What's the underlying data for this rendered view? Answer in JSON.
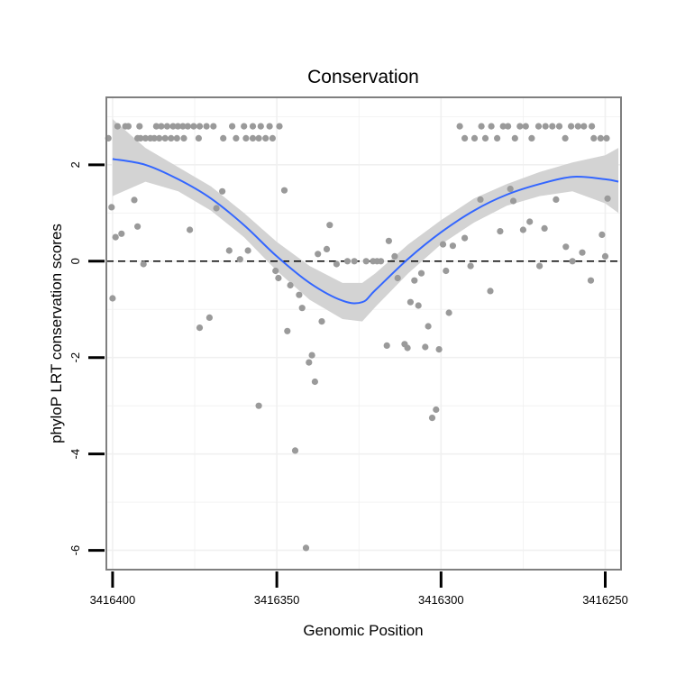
{
  "chart_data": {
    "type": "scatter",
    "title": "Conservation",
    "xlabel": "Genomic Position",
    "ylabel": "phyloP LRT conservation scores",
    "x_reversed": true,
    "xlim": [
      3416401.9,
      3416245.2
    ],
    "ylim": [
      -6.4,
      3.4
    ],
    "x_ticks": [
      3416400,
      3416350,
      3416300,
      3416250
    ],
    "x_tick_labels": [
      "3416400",
      "3416350",
      "3416300",
      "3416250"
    ],
    "y_ticks": [
      -6,
      -4,
      -2,
      0,
      2
    ],
    "y_tick_labels": [
      "-6",
      "-4",
      "-2",
      "0",
      "2"
    ],
    "grid": true,
    "reference_line": {
      "y": 0,
      "style": "dashed",
      "color": "#000000"
    },
    "colors": {
      "points": "#9a9a9a",
      "smooth_line": "#3366ff",
      "ribbon": "#d3d3d3",
      "panel_border": "#7f7f7f",
      "grid": "#f0f0f0"
    },
    "series": [
      {
        "kind": "points",
        "points": [
          [
            3416401.3,
            2.55
          ],
          [
            3416400.3,
            1.12
          ],
          [
            3416400,
            -0.77
          ],
          [
            3416399.1,
            0.5
          ],
          [
            3416398.5,
            2.8
          ],
          [
            3416397.3,
            0.57
          ],
          [
            3416396.1,
            2.8
          ],
          [
            3416395.2,
            2.8
          ],
          [
            3416393.4,
            1.27
          ],
          [
            3416392.4,
            0.72
          ],
          [
            3416390.6,
            -0.06
          ],
          [
            3416392.4,
            2.55
          ],
          [
            3416391.5,
            2.55
          ],
          [
            3416390,
            2.55
          ],
          [
            3416388.5,
            2.55
          ],
          [
            3416391.8,
            2.8
          ],
          [
            3416387.3,
            2.55
          ],
          [
            3416385.8,
            2.55
          ],
          [
            3416384,
            2.55
          ],
          [
            3416382.2,
            2.55
          ],
          [
            3416380.4,
            2.55
          ],
          [
            3416378.3,
            2.55
          ],
          [
            3416386.7,
            2.8
          ],
          [
            3416385.2,
            2.8
          ],
          [
            3416383.4,
            2.8
          ],
          [
            3416381.6,
            2.8
          ],
          [
            3416380.1,
            2.8
          ],
          [
            3416378.6,
            2.8
          ],
          [
            3416377.1,
            2.8
          ],
          [
            3416375.3,
            2.8
          ],
          [
            3416373.5,
            2.8
          ],
          [
            3416371.4,
            2.8
          ],
          [
            3416369.3,
            2.8
          ],
          [
            3416373.8,
            2.55
          ],
          [
            3416376.5,
            0.65
          ],
          [
            3416373.5,
            -1.38
          ],
          [
            3416370.5,
            -1.17
          ],
          [
            3416368.4,
            1.1
          ],
          [
            3416366.6,
            1.45
          ],
          [
            3416364.5,
            0.22
          ],
          [
            3416361.2,
            0.04
          ],
          [
            3416358.8,
            0.22
          ],
          [
            3416366.3,
            2.55
          ],
          [
            3416362.4,
            2.55
          ],
          [
            3416359.4,
            2.55
          ],
          [
            3416357.3,
            2.55
          ],
          [
            3416355.5,
            2.55
          ],
          [
            3416353.4,
            2.55
          ],
          [
            3416351.3,
            2.55
          ],
          [
            3416363.6,
            2.8
          ],
          [
            3416360,
            2.8
          ],
          [
            3416357.3,
            2.8
          ],
          [
            3416354.9,
            2.8
          ],
          [
            3416352.2,
            2.8
          ],
          [
            3416349.2,
            2.8
          ],
          [
            3416355.5,
            -3
          ],
          [
            3416350.4,
            -0.2
          ],
          [
            3416349.5,
            -0.35
          ],
          [
            3416347.7,
            1.47
          ],
          [
            3416346.8,
            -1.45
          ],
          [
            3416345.9,
            -0.5
          ],
          [
            3416344.4,
            -3.93
          ],
          [
            3416343.2,
            -0.7
          ],
          [
            3416342.3,
            -0.97
          ],
          [
            3416341.1,
            -5.95
          ],
          [
            3416340.2,
            -2.1
          ],
          [
            3416339.3,
            -1.95
          ],
          [
            3416338.4,
            -2.5
          ],
          [
            3416337.5,
            0.15
          ],
          [
            3416336.3,
            -1.25
          ],
          [
            3416334.8,
            0.25
          ],
          [
            3416333.9,
            0.75
          ],
          [
            3416331.8,
            -0.06
          ],
          [
            3416328.5,
            0.0
          ],
          [
            3416326.4,
            0.0
          ],
          [
            3416322.8,
            0.0
          ],
          [
            3416320.7,
            0.0
          ],
          [
            3416319.5,
            0.0
          ],
          [
            3416318.3,
            0.0
          ],
          [
            3416316.5,
            -1.75
          ],
          [
            3416315.9,
            0.42
          ],
          [
            3416314.1,
            0.1
          ],
          [
            3416313.2,
            -0.35
          ],
          [
            3416311.1,
            -1.72
          ],
          [
            3416310.2,
            -1.8
          ],
          [
            3416309.3,
            -0.85
          ],
          [
            3416308.1,
            -0.4
          ],
          [
            3416306.9,
            -0.92
          ],
          [
            3416306,
            -0.25
          ],
          [
            3416304.8,
            -1.78
          ],
          [
            3416303.9,
            -1.35
          ],
          [
            3416302.7,
            -3.25
          ],
          [
            3416301.5,
            -3.08
          ],
          [
            3416300.6,
            -1.83
          ],
          [
            3416299.4,
            0.35
          ],
          [
            3416298.5,
            -0.2
          ],
          [
            3416297.6,
            -1.07
          ],
          [
            3416296.4,
            0.32
          ],
          [
            3416294.3,
            2.8
          ],
          [
            3416292.8,
            2.55
          ],
          [
            3416289.8,
            2.55
          ],
          [
            3416287.7,
            2.8
          ],
          [
            3416286.5,
            2.55
          ],
          [
            3416284.7,
            2.8
          ],
          [
            3416282.9,
            2.55
          ],
          [
            3416281.1,
            2.8
          ],
          [
            3416279.6,
            2.8
          ],
          [
            3416277.5,
            2.55
          ],
          [
            3416276,
            2.8
          ],
          [
            3416274.2,
            2.8
          ],
          [
            3416272.4,
            2.55
          ],
          [
            3416270.3,
            2.8
          ],
          [
            3416268.2,
            2.8
          ],
          [
            3416266.1,
            2.8
          ],
          [
            3416264,
            2.8
          ],
          [
            3416262.2,
            2.55
          ],
          [
            3416260.4,
            2.8
          ],
          [
            3416258.3,
            2.8
          ],
          [
            3416256.5,
            2.8
          ],
          [
            3416254.1,
            2.8
          ],
          [
            3416251.4,
            2.55
          ],
          [
            3416249.6,
            2.55
          ],
          [
            3416292.8,
            0.48
          ],
          [
            3416291,
            -0.1
          ],
          [
            3416288,
            1.28
          ],
          [
            3416285,
            -0.62
          ],
          [
            3416282,
            0.62
          ],
          [
            3416278.9,
            1.5
          ],
          [
            3416278,
            1.25
          ],
          [
            3416275,
            0.65
          ],
          [
            3416273,
            0.82
          ],
          [
            3416270,
            -0.1
          ],
          [
            3416268.5,
            0.68
          ],
          [
            3416265,
            1.28
          ],
          [
            3416262,
            0.3
          ],
          [
            3416260,
            0.0
          ],
          [
            3416257,
            0.18
          ],
          [
            3416254.4,
            -0.4
          ],
          [
            3416253.5,
            2.55
          ],
          [
            3416251,
            0.55
          ],
          [
            3416250,
            0.1
          ],
          [
            3416249.3,
            1.3
          ]
        ]
      },
      {
        "kind": "smooth",
        "points": [
          [
            3416400,
            2.12
          ],
          [
            3416390,
            2.0
          ],
          [
            3416380,
            1.7
          ],
          [
            3416370,
            1.3
          ],
          [
            3416360,
            0.75
          ],
          [
            3416350,
            0.1
          ],
          [
            3416340,
            -0.45
          ],
          [
            3416330,
            -0.82
          ],
          [
            3416324,
            -0.85
          ],
          [
            3416320,
            -0.6
          ],
          [
            3416310,
            0.05
          ],
          [
            3416300,
            0.6
          ],
          [
            3416290,
            1.05
          ],
          [
            3416280,
            1.38
          ],
          [
            3416270,
            1.6
          ],
          [
            3416260,
            1.75
          ],
          [
            3416250,
            1.7
          ],
          [
            3416246,
            1.65
          ]
        ]
      },
      {
        "kind": "ribbon",
        "lower": [
          [
            3416400,
            1.35
          ],
          [
            3416390,
            1.65
          ],
          [
            3416380,
            1.45
          ],
          [
            3416370,
            1.05
          ],
          [
            3416360,
            0.5
          ],
          [
            3416350,
            -0.2
          ],
          [
            3416340,
            -0.8
          ],
          [
            3416330,
            -1.2
          ],
          [
            3416324,
            -1.25
          ],
          [
            3416320,
            -0.95
          ],
          [
            3416310,
            -0.25
          ],
          [
            3416300,
            0.35
          ],
          [
            3416290,
            0.8
          ],
          [
            3416280,
            1.15
          ],
          [
            3416270,
            1.35
          ],
          [
            3416260,
            1.45
          ],
          [
            3416250,
            1.2
          ],
          [
            3416246,
            1.0
          ]
        ],
        "upper": [
          [
            3416400,
            2.95
          ],
          [
            3416390,
            2.35
          ],
          [
            3416380,
            1.95
          ],
          [
            3416370,
            1.55
          ],
          [
            3416360,
            1.0
          ],
          [
            3416350,
            0.4
          ],
          [
            3416340,
            -0.1
          ],
          [
            3416330,
            -0.45
          ],
          [
            3416324,
            -0.45
          ],
          [
            3416320,
            -0.25
          ],
          [
            3416310,
            0.35
          ],
          [
            3416300,
            0.85
          ],
          [
            3416290,
            1.3
          ],
          [
            3416280,
            1.6
          ],
          [
            3416270,
            1.85
          ],
          [
            3416260,
            2.05
          ],
          [
            3416250,
            2.2
          ],
          [
            3416246,
            2.35
          ]
        ]
      }
    ]
  }
}
